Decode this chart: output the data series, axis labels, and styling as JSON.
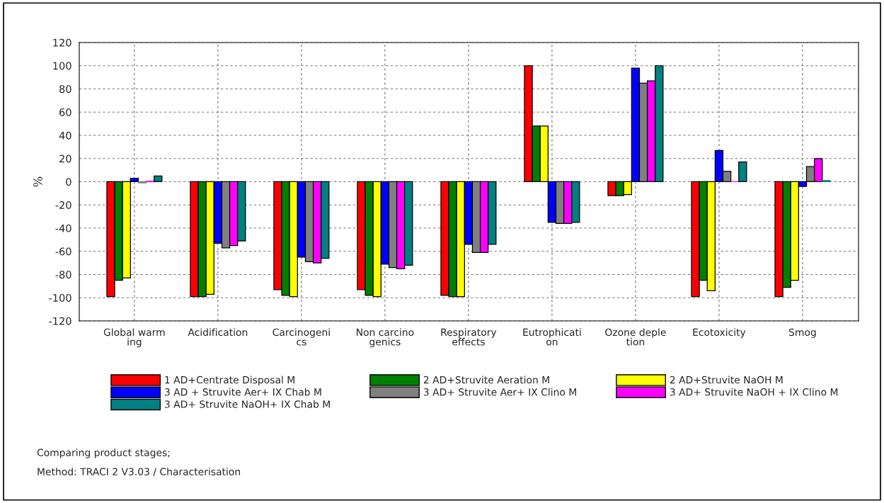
{
  "chart_data": {
    "type": "bar",
    "ylabel": "%",
    "categories": [
      "Global warm\ning",
      "Acidification",
      "Carcinogeni\ncs",
      "Non carcino\ngenics",
      "Respiratory\neffects",
      "Eutrophicati\non",
      "Ozone deple\ntion",
      "Ecotoxicity",
      "Smog"
    ],
    "series": [
      {
        "name": "1 AD+Centrate Disposal M",
        "color": "#ff0000",
        "values": [
          -99,
          -99,
          -93,
          -93,
          -98,
          100,
          -12,
          -99,
          -99
        ]
      },
      {
        "name": "2 AD+Struvite Aeration M",
        "color": "#008000",
        "values": [
          -85,
          -99,
          -98,
          -98,
          -99,
          48,
          -12,
          -85,
          -91
        ]
      },
      {
        "name": "2 AD+Struvite NaOH M",
        "color": "#ffff00",
        "values": [
          -83,
          -97,
          -99,
          -99,
          -99,
          48,
          -11,
          -94,
          -85
        ]
      },
      {
        "name": "3 AD + Struvite Aer+ IX Chab M",
        "color": "#0000ff",
        "values": [
          3,
          -53,
          -65,
          -71,
          -54,
          -35,
          98,
          27,
          -4
        ]
      },
      {
        "name": "3 AD+ Struvite Aer+ IX Clino M",
        "color": "#808080",
        "values": [
          -1,
          -57,
          -69,
          -74,
          -61,
          -36,
          85,
          9,
          13
        ]
      },
      {
        "name": "3 AD+ Struvite NaOH + IX Clino M",
        "color": "#ff00ff",
        "values": [
          0.5,
          -55,
          -70,
          -75,
          -61,
          -36,
          87,
          0,
          20
        ]
      },
      {
        "name": "3 AD+ Struvite NaOH+ IX Chab M",
        "color": "#008080",
        "values": [
          5,
          -51,
          -66,
          -72,
          -54,
          -35,
          100,
          17,
          1
        ]
      }
    ],
    "ylim": [
      -120,
      120
    ],
    "yticks": [
      -120,
      -100,
      -80,
      -60,
      -40,
      -20,
      0,
      20,
      40,
      60,
      80,
      100,
      120
    ],
    "grid": true,
    "legend": "bottom",
    "annotations": [
      "Comparing product stages;",
      "Method: TRACI 2 V3.03 / Characterisation"
    ]
  }
}
